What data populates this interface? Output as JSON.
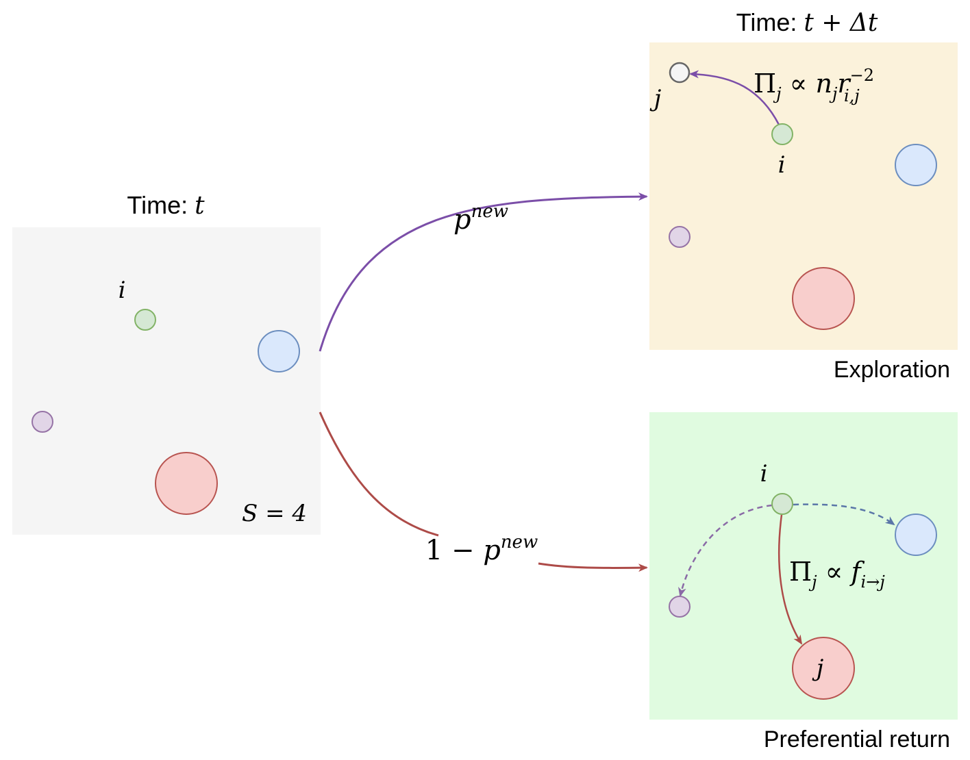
{
  "panels": {
    "current": {
      "title_prefix": "Time: ",
      "title_var": "t",
      "node_i_label": "i",
      "count_label": "S = 4"
    },
    "exploration": {
      "title_prefix": "Time: ",
      "title_var": "t + Δt",
      "caption": "Exploration",
      "node_j_label": "j",
      "node_i_label": "i",
      "formula": {
        "lhs": "Π",
        "lhs_sub": "j",
        "rel": " ∝ ",
        "n": "n",
        "n_sub": "j",
        "r": "r",
        "r_sup": "−2",
        "r_sub": "i,j"
      }
    },
    "return": {
      "caption": "Preferential return",
      "node_i_label": "i",
      "node_j_label": "j",
      "formula": {
        "lhs": "Π",
        "lhs_sub": "j",
        "rel": " ∝ ",
        "f": "f",
        "f_sub": "i→j"
      }
    }
  },
  "transitions": {
    "explore": {
      "base": "p",
      "sup": "new"
    },
    "return": {
      "prefix": "1 − ",
      "base": "p",
      "sup": "new"
    }
  },
  "colors": {
    "panel_current": "#f5f5f5",
    "panel_exploration": "#fbf2db",
    "panel_return": "#e0fbe0",
    "green_fill": "#d5e8d4",
    "green_stroke": "#82b366",
    "blue_fill": "#dae8fc",
    "blue_stroke": "#6c8ebf",
    "purple_fill": "#e1d5e7",
    "purple_stroke": "#9673a6",
    "red_fill": "#f8cecc",
    "red_stroke": "#b85450",
    "gray_fill": "#f5f5f5",
    "gray_stroke": "#666666",
    "arrow_purple": "#7b4ea8",
    "arrow_red": "#ad4b48",
    "arrow_blue": "#5a76a8"
  }
}
